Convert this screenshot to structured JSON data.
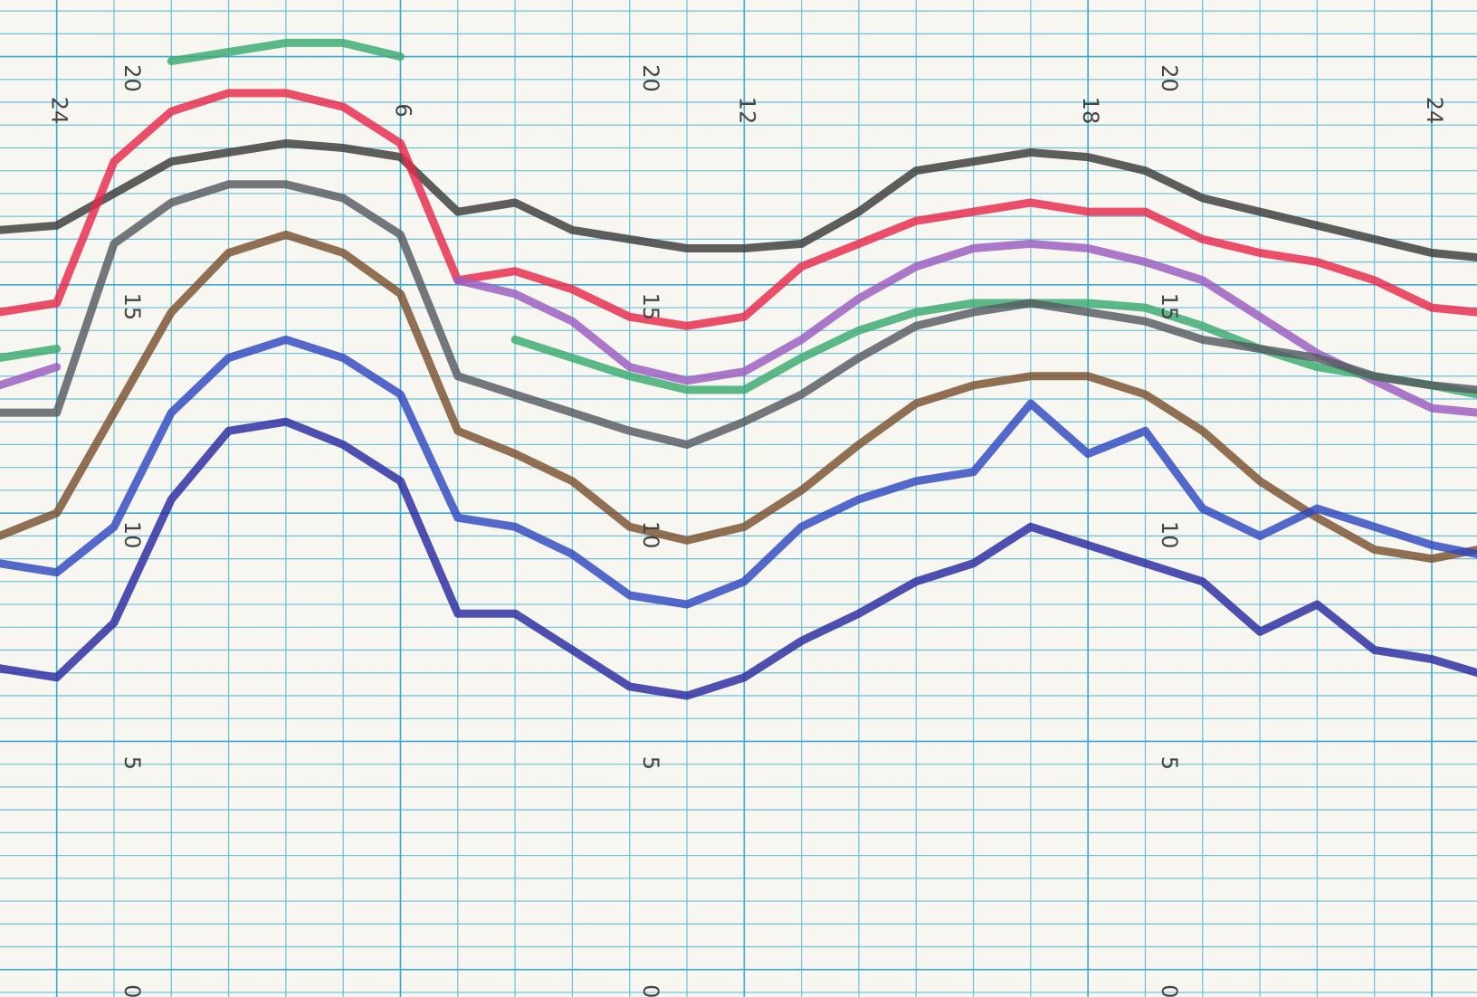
{
  "chart_data": {
    "type": "line",
    "x": [
      -1,
      0,
      1,
      2,
      3,
      4,
      5,
      6,
      7,
      8,
      9,
      10,
      11,
      12,
      13,
      14,
      15,
      16,
      17,
      18,
      19,
      20,
      21,
      22,
      23,
      24,
      24.8
    ],
    "xlim": [
      -0.99,
      24.79
    ],
    "xticks": [
      {
        "value": 0,
        "label": "24"
      },
      {
        "value": 6,
        "label": "6"
      },
      {
        "value": 12,
        "label": "12"
      },
      {
        "value": 18,
        "label": "18"
      },
      {
        "value": 24,
        "label": "24"
      }
    ],
    "ylim": [
      -0.6,
      21.24
    ],
    "yticks": [
      0,
      5,
      10,
      15,
      20
    ],
    "grid": true,
    "series": [
      {
        "color": "#3a3a3a",
        "values": [
          16.2,
          16.3,
          17.0,
          17.7,
          17.9,
          18.1,
          18.0,
          17.8,
          16.6,
          16.8,
          16.2,
          16.0,
          15.8,
          15.8,
          15.9,
          16.6,
          17.5,
          17.7,
          17.9,
          17.8,
          17.5,
          16.9,
          16.6,
          16.3,
          16.0,
          15.7,
          15.6
        ]
      },
      {
        "color": "#e8284a",
        "values": [
          14.4,
          14.6,
          17.7,
          18.8,
          19.2,
          19.2,
          18.9,
          18.1,
          15.1,
          15.3,
          14.9,
          14.3,
          14.1,
          14.3,
          15.4,
          15.9,
          16.4,
          16.6,
          16.8,
          16.6,
          16.6,
          16.0,
          15.7,
          15.5,
          15.1,
          14.5,
          14.4
        ]
      },
      {
        "color": "#9a5cc0",
        "values": [
          12.8,
          13.2,
          null,
          null,
          null,
          null,
          null,
          null,
          15.1,
          14.8,
          14.2,
          13.2,
          12.9,
          13.1,
          13.8,
          14.7,
          15.4,
          15.8,
          15.9,
          15.8,
          15.5,
          15.1,
          14.3,
          13.5,
          12.9,
          12.3,
          12.2
        ]
      },
      {
        "color": "#3aaa70",
        "values": [
          13.4,
          13.6,
          null,
          19.9,
          20.1,
          20.3,
          20.3,
          20.0,
          null,
          13.8,
          13.4,
          13.0,
          12.7,
          12.7,
          13.4,
          14.0,
          14.4,
          14.6,
          14.6,
          14.6,
          14.5,
          14.1,
          13.6,
          13.2,
          13.0,
          12.8,
          12.6
        ]
      },
      {
        "color": "#555a60",
        "values": [
          12.2,
          12.2,
          15.9,
          16.8,
          17.2,
          17.2,
          16.9,
          16.1,
          13.0,
          12.6,
          12.2,
          11.8,
          11.5,
          12.0,
          12.6,
          13.4,
          14.1,
          14.4,
          14.6,
          14.4,
          14.2,
          13.8,
          13.6,
          13.4,
          13.0,
          12.8,
          12.7
        ]
      },
      {
        "color": "#7a5030",
        "values": [
          9.5,
          10.0,
          12.2,
          14.4,
          15.7,
          16.1,
          15.7,
          14.8,
          11.8,
          11.3,
          10.7,
          9.7,
          9.4,
          9.7,
          10.5,
          11.5,
          12.4,
          12.8,
          13.0,
          13.0,
          12.6,
          11.8,
          10.7,
          9.9,
          9.2,
          9.0,
          9.2
        ]
      },
      {
        "color": "#3048c0",
        "values": [
          8.9,
          8.7,
          9.7,
          12.2,
          13.4,
          13.8,
          13.4,
          12.6,
          9.9,
          9.7,
          9.1,
          8.2,
          8.0,
          8.5,
          9.7,
          10.3,
          10.7,
          10.9,
          12.4,
          11.3,
          11.8,
          10.1,
          9.5,
          10.1,
          9.7,
          9.3,
          9.1
        ]
      },
      {
        "color": "#2a2aa0",
        "values": [
          6.6,
          6.4,
          7.6,
          10.3,
          11.8,
          12.0,
          11.5,
          10.7,
          7.8,
          7.8,
          7.0,
          6.2,
          6.0,
          6.4,
          7.2,
          7.8,
          8.5,
          8.9,
          9.7,
          9.3,
          8.9,
          8.5,
          7.4,
          8.0,
          7.0,
          6.8,
          6.5
        ]
      }
    ]
  }
}
